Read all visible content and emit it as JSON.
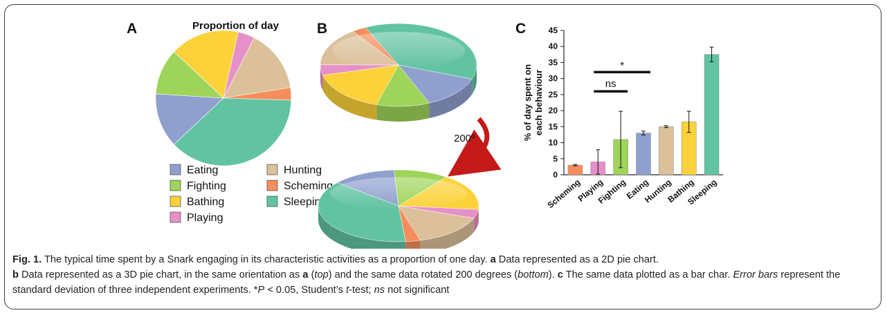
{
  "figure": {
    "panel_a_letter": "A",
    "panel_b_letter": "B",
    "panel_c_letter": "C",
    "panel_a_title": "Proportion of day",
    "rotation_label": "200º"
  },
  "legend": [
    {
      "label": "Eating",
      "color": "#8fa0cf"
    },
    {
      "label": "Hunting",
      "color": "#dcc09a"
    },
    {
      "label": "Fighting",
      "color": "#9fd45a"
    },
    {
      "label": "Scheming",
      "color": "#f58e5c"
    },
    {
      "label": "Bathing",
      "color": "#fcd23a"
    },
    {
      "label": "Sleeping",
      "color": "#62c3a2"
    },
    {
      "label": "Playing",
      "color": "#e690c8"
    }
  ],
  "chart_data": [
    {
      "type": "pie",
      "panel": "A",
      "title": "Proportion of day",
      "categories": [
        "Eating",
        "Fighting",
        "Bathing",
        "Playing",
        "Hunting",
        "Scheming",
        "Sleeping"
      ],
      "values": [
        13,
        11,
        16.5,
        4,
        15,
        3,
        37.5
      ]
    },
    {
      "type": "pie",
      "panel": "B",
      "variant": "3d",
      "categories": [
        "Eating",
        "Fighting",
        "Bathing",
        "Playing",
        "Hunting",
        "Scheming",
        "Sleeping"
      ],
      "values": [
        13,
        11,
        16.5,
        4,
        15,
        3,
        37.5
      ],
      "rotations_deg": [
        0,
        200
      ]
    },
    {
      "type": "bar",
      "panel": "C",
      "categories": [
        "Scheming",
        "Playing",
        "Fighting",
        "Eating",
        "Hunting",
        "Bathing",
        "Sleeping"
      ],
      "values": [
        3,
        4,
        11,
        13,
        15,
        16.5,
        37.5
      ],
      "errors": [
        0.2,
        3.8,
        8.8,
        0.6,
        0.3,
        3.3,
        2.3
      ],
      "colors": [
        "#f58e5c",
        "#e690c8",
        "#9fd45a",
        "#8fa0cf",
        "#dcc09a",
        "#fcd23a",
        "#62c3a2"
      ],
      "ylabel": "% of day spent on each behaviour",
      "ylim": [
        0,
        45
      ],
      "yticks": [
        0,
        5,
        10,
        15,
        20,
        25,
        30,
        35,
        40,
        45
      ],
      "grid": false,
      "annotations": [
        {
          "text": "*",
          "from": "Playing",
          "to": "Eating",
          "y": 32
        },
        {
          "text": "ns",
          "from": "Playing",
          "to": "Fighting",
          "y": 26
        }
      ]
    }
  ],
  "caption": {
    "fig_label": "Fig. 1.",
    "p1": " The typical time spent by a Snark engaging in its characteristic activities as a proportion of one day. ",
    "a_bold": "a",
    "p2": " Data represented as a 2D pie chart.",
    "b_bold": "b",
    "p3": " Data represented as a 3D pie chart, in the same orientation as ",
    "a_ref": "a",
    "p4": " (",
    "top": "top",
    "p5": ") and the same data rotated 200 degrees (",
    "bottom": "bottom",
    "p6": "). ",
    "c_bold": "c",
    "p7": " The same data plotted as a bar char. ",
    "error_bars": "Error bars",
    "p8": " represent the standard deviation of three independent experiments. *",
    "P": "P",
    "p9": " < 0.05, Student’s ",
    "t": "t",
    "p10": "-test; ",
    "ns": "ns",
    "p11": " not significant"
  }
}
